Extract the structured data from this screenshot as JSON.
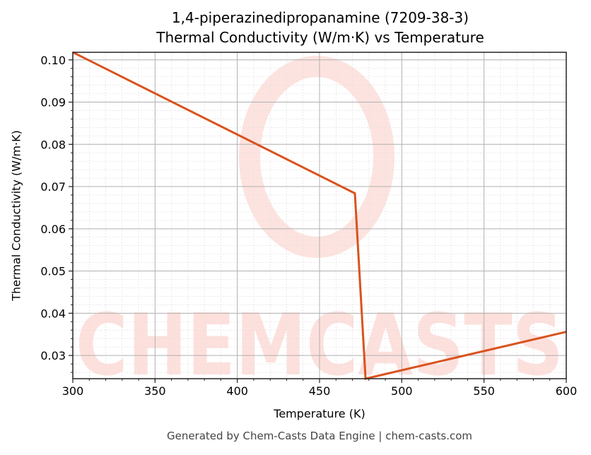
{
  "header": {
    "title_line1": "1,4-piperazinedipropanamine (7209-38-3)",
    "title_line2": "Thermal Conductivity (W/m·K) vs Temperature"
  },
  "axes": {
    "xlabel": "Temperature (K)",
    "ylabel": "Thermal Conductivity (W/m·K)"
  },
  "footer": {
    "text": "Generated by Chem-Casts Data Engine | chem-casts.com"
  },
  "watermark": {
    "text": "CHEMCASTS",
    "color": "#fde0dc"
  },
  "colors": {
    "line": "#d9531e",
    "major_grid": "#b0b0b0",
    "minor_grid": "#e0e0e0",
    "axis": "#222222"
  },
  "chart_data": {
    "type": "line",
    "title": "1,4-piperazinedipropanamine (7209-38-3)\nThermal Conductivity (W/m·K) vs Temperature",
    "xlabel": "Temperature (K)",
    "ylabel": "Thermal Conductivity (W/m·K)",
    "xlim": [
      300,
      600
    ],
    "ylim": [
      0.0245,
      0.1018
    ],
    "xticks": [
      300,
      350,
      400,
      450,
      500,
      550,
      600
    ],
    "yticks": [
      0.03,
      0.04,
      0.05,
      0.06,
      0.07,
      0.08,
      0.09,
      0.1
    ],
    "xtick_labels": [
      "300",
      "350",
      "400",
      "450",
      "500",
      "550",
      "600"
    ],
    "ytick_labels": [
      "0.03",
      "0.04",
      "0.05",
      "0.06",
      "0.07",
      "0.08",
      "0.09",
      "0.10"
    ],
    "grid": true,
    "minor_grid": true,
    "legend": null,
    "series": [
      {
        "name": "Thermal Conductivity",
        "x": [
          300,
          471.5,
          478,
          600
        ],
        "y": [
          0.1018,
          0.0684,
          0.0245,
          0.0356
        ]
      }
    ]
  }
}
